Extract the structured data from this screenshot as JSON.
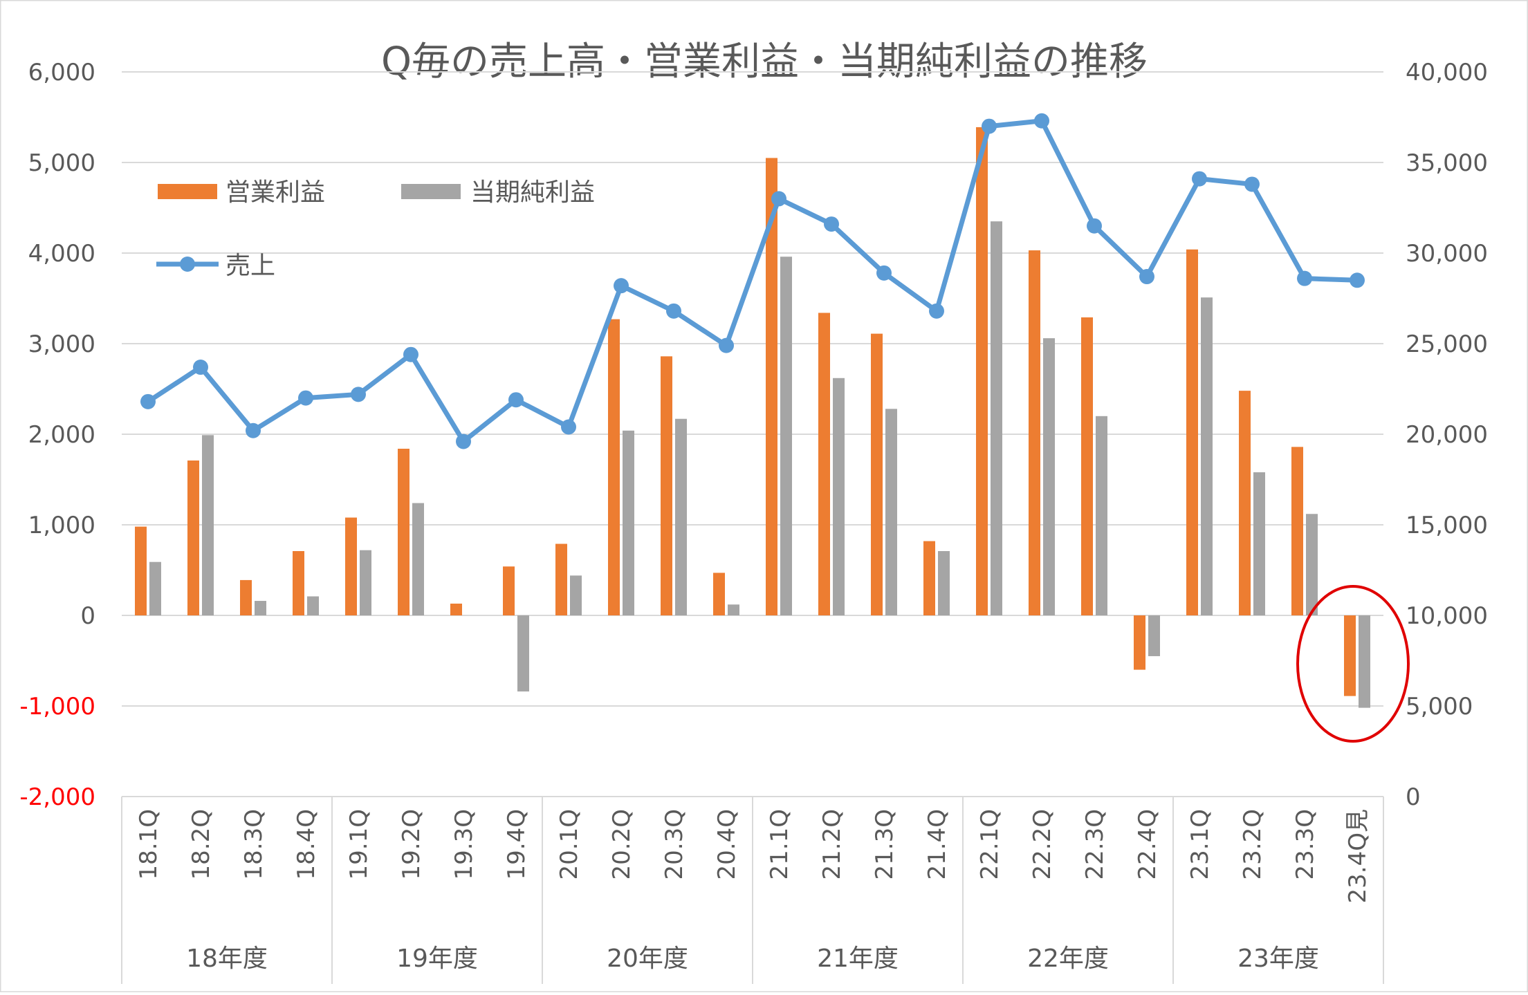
{
  "chart_data": {
    "type": "bar",
    "title": "Q毎の売上高・営業利益・当期純利益の推移",
    "categories": [
      "18.1Q",
      "18.2Q",
      "18.3Q",
      "18.4Q",
      "19.1Q",
      "19.2Q",
      "19.3Q",
      "19.4Q",
      "20.1Q",
      "20.2Q",
      "20.3Q",
      "20.4Q",
      "21.1Q",
      "21.2Q",
      "21.3Q",
      "21.4Q",
      "22.1Q",
      "22.2Q",
      "22.3Q",
      "22.4Q",
      "23.1Q",
      "23.2Q",
      "23.3Q",
      "23.4Q見"
    ],
    "groups": [
      {
        "label": "18年度",
        "span": 4
      },
      {
        "label": "19年度",
        "span": 4
      },
      {
        "label": "20年度",
        "span": 4
      },
      {
        "label": "21年度",
        "span": 4
      },
      {
        "label": "22年度",
        "span": 4
      },
      {
        "label": "23年度",
        "span": 4
      }
    ],
    "series": [
      {
        "name": "営業利益",
        "kind": "bar",
        "axis": "left",
        "color": "#ED7D31",
        "values": [
          980,
          1710,
          390,
          710,
          1080,
          1840,
          130,
          540,
          790,
          3270,
          2860,
          470,
          5050,
          3340,
          3110,
          820,
          5390,
          4030,
          3290,
          -600,
          4040,
          2480,
          1860,
          -890
        ]
      },
      {
        "name": "当期純利益",
        "kind": "bar",
        "axis": "left",
        "color": "#A5A5A5",
        "values": [
          590,
          1990,
          160,
          210,
          720,
          1240,
          0,
          -840,
          440,
          2040,
          2170,
          120,
          3960,
          2620,
          2280,
          710,
          4350,
          3060,
          2200,
          -450,
          3510,
          1580,
          1120,
          -1020
        ]
      },
      {
        "name": "売上",
        "kind": "line",
        "axis": "right",
        "color": "#5B9BD5",
        "values": [
          21800,
          23700,
          20200,
          22000,
          22200,
          24400,
          19600,
          21900,
          20400,
          28200,
          26800,
          24900,
          33000,
          31600,
          28900,
          26800,
          37000,
          37300,
          31500,
          28700,
          34100,
          33800,
          28600,
          28500
        ]
      }
    ],
    "y_left": {
      "min": -2000,
      "max": 6000,
      "step": 1000,
      "ticks": [
        "-2,000",
        "-1,000",
        "0",
        "1,000",
        "2,000",
        "3,000",
        "4,000",
        "5,000",
        "6,000"
      ],
      "negative_color": "#FF0000"
    },
    "y_right": {
      "min": 0,
      "max": 40000,
      "step": 5000,
      "ticks": [
        "0",
        "5,000",
        "10,000",
        "15,000",
        "20,000",
        "25,000",
        "30,000",
        "35,000",
        "40,000"
      ]
    },
    "grid": true,
    "legend_position": "top-left",
    "annotation": {
      "shape": "ellipse",
      "color": "#E00000",
      "target_category": "23.4Q見"
    }
  }
}
